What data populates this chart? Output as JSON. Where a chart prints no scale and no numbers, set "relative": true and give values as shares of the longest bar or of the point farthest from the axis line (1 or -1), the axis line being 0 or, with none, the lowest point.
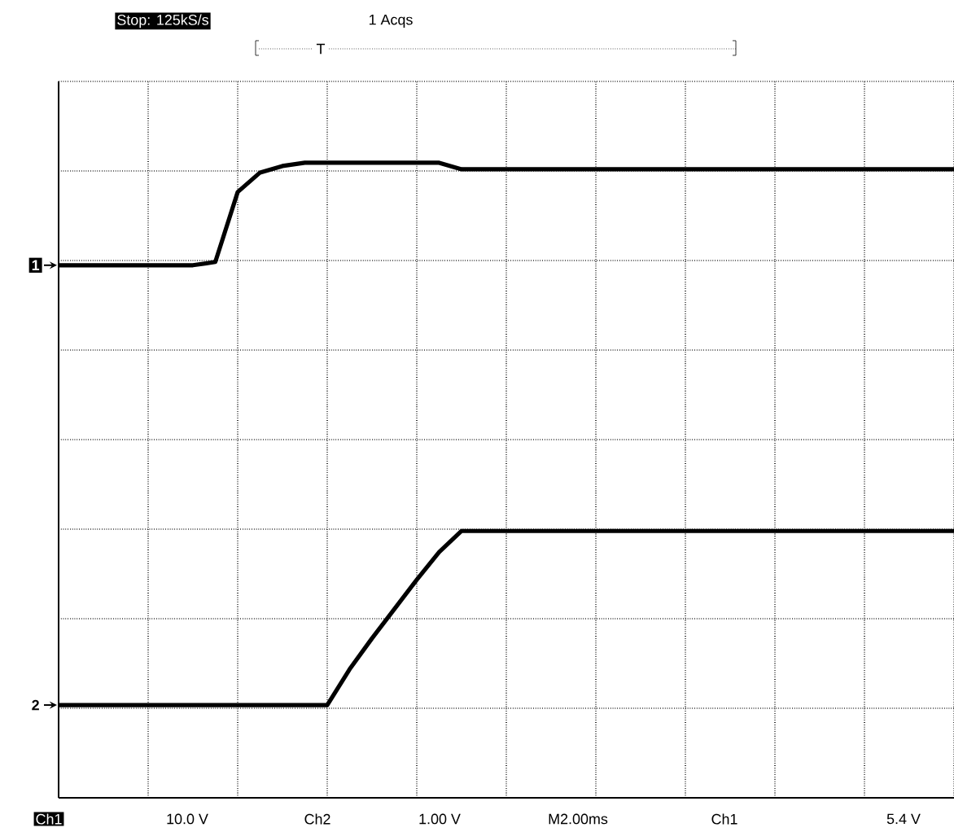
{
  "chart_data": {
    "type": "line",
    "relative": true,
    "legend": "left",
    "grid": true,
    "marker": "none",
    "line_style": "solid",
    "categories": [
      null,
      null,
      null,
      null,
      null,
      null,
      null,
      null,
      null,
      null,
      null,
      null,
      null,
      null,
      null,
      null,
      null,
      null,
      null,
      null,
      null,
      null,
      null,
      null,
      null,
      null,
      null,
      null,
      null,
      null,
      null,
      null,
      null,
      null,
      null,
      null,
      null,
      null,
      null,
      null,
      null
    ],
    "series": [
      {
        "name": "1",
        "color": "#000000",
        "values": [
          0.811,
          0.811,
          0.811,
          0.811,
          0.811,
          0.811,
          0.811,
          0.817,
          0.946,
          0.982,
          0.994,
          1.0,
          1.0,
          1.0,
          1.0,
          1.0,
          1.0,
          1.0,
          0.988,
          0.988,
          0.988,
          0.988,
          0.988,
          0.988,
          0.988,
          0.988,
          0.988,
          0.988,
          0.988,
          0.988,
          0.988,
          0.988,
          0.988,
          0.988,
          0.988,
          0.988,
          0.988,
          0.988,
          0.988,
          0.988,
          0.988
        ]
      },
      {
        "name": "2",
        "color": "#000000",
        "values": [
          0,
          0,
          0,
          0,
          0,
          0,
          0,
          0,
          0,
          0,
          0,
          0,
          0,
          0.066,
          0.123,
          0.177,
          0.231,
          0.282,
          0.321,
          0.321,
          0.321,
          0.321,
          0.321,
          0.321,
          0.321,
          0.321,
          0.321,
          0.321,
          0.321,
          0.321,
          0.321,
          0.321,
          0.321,
          0.321,
          0.321,
          0.321,
          0.321,
          0.321,
          0.321,
          0.321,
          0.321
        ]
      }
    ],
    "annotations": [
      "Stop: 125kS/s",
      "1 Acqs",
      "T",
      "Ch1",
      "10.0 V",
      "Ch2",
      "1.00 V",
      "M2.00ms",
      "Ch1",
      "5.4 V"
    ]
  }
}
